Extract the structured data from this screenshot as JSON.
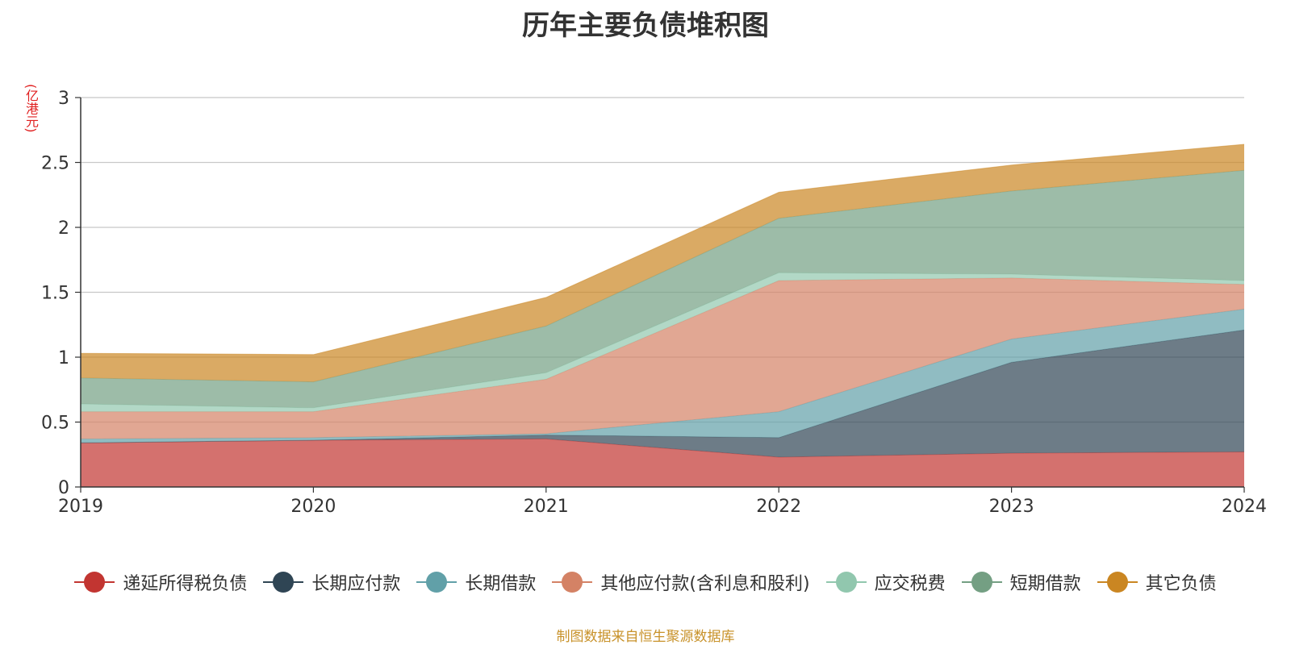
{
  "chart_data": {
    "type": "area",
    "stacked": true,
    "title": "历年主要负债堆积图",
    "unit_label": "(亿港元)",
    "categories": [
      "2019",
      "2020",
      "2021",
      "2022",
      "2023",
      "2024"
    ],
    "ylim": [
      0,
      3
    ],
    "yticks": [
      "0",
      "0.5",
      "1",
      "1.5",
      "2",
      "2.5",
      "3"
    ],
    "grid": true,
    "legend_position": "bottom",
    "series": [
      {
        "name": "递延所得税负债",
        "color": "#c23531",
        "values": [
          0.34,
          0.36,
          0.37,
          0.23,
          0.26,
          0.27
        ]
      },
      {
        "name": "长期应付款",
        "color": "#2f4554",
        "values": [
          0.0,
          0.0,
          0.03,
          0.15,
          0.7,
          0.94
        ]
      },
      {
        "name": "长期借款",
        "color": "#61a0a8",
        "values": [
          0.03,
          0.02,
          0.01,
          0.2,
          0.18,
          0.16
        ]
      },
      {
        "name": "其他应付款(含利息和股利)",
        "color": "#d48265",
        "values": [
          0.21,
          0.2,
          0.42,
          1.01,
          0.47,
          0.19
        ]
      },
      {
        "name": "应交税费",
        "color": "#91c7ae",
        "values": [
          0.06,
          0.03,
          0.05,
          0.06,
          0.03,
          0.03
        ]
      },
      {
        "name": "短期借款",
        "color": "#749f83",
        "values": [
          0.2,
          0.2,
          0.36,
          0.42,
          0.64,
          0.85
        ]
      },
      {
        "name": "其它负债",
        "color": "#ca8622",
        "values": [
          0.19,
          0.21,
          0.22,
          0.2,
          0.2,
          0.2
        ]
      }
    ]
  },
  "source_note": "制图数据来自恒生聚源数据库"
}
